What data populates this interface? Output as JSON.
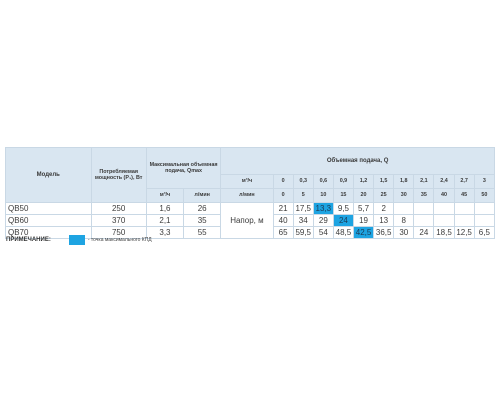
{
  "header": {
    "model": "Модель",
    "power": "Потребляемая мощность (P₁), Вт",
    "max_flow": "Максимальная объемная подача, Qmax",
    "max_flow_unit_m3": "м³/ч",
    "max_flow_unit_lmin": "л/мин",
    "flow": "Объемная подача, Q",
    "row_unit_m3": "м³/ч",
    "row_unit_lmin": "л/мин",
    "flow_m3": [
      "0",
      "0,3",
      "0,6",
      "0,9",
      "1,2",
      "1,5",
      "1,8",
      "2,1",
      "2,4",
      "2,7",
      "3"
    ],
    "flow_lmin": [
      "0",
      "5",
      "10",
      "15",
      "20",
      "25",
      "30",
      "35",
      "40",
      "45",
      "50"
    ]
  },
  "head_label": "Напор, м",
  "rows": [
    {
      "model": "QB50",
      "power": "250",
      "qmax_m3": "1,6",
      "qmax_lmin": "26",
      "head": [
        "21",
        "17,5",
        "13,3",
        "9,5",
        "5,7",
        "2",
        "",
        "",
        "",
        "",
        ""
      ],
      "highlight": 2
    },
    {
      "model": "QB60",
      "power": "370",
      "qmax_m3": "2,1",
      "qmax_lmin": "35",
      "head": [
        "40",
        "34",
        "29",
        "24",
        "19",
        "13",
        "8",
        "",
        "",
        "",
        ""
      ],
      "highlight": 3
    },
    {
      "model": "QB70",
      "power": "750",
      "qmax_m3": "3,3",
      "qmax_lmin": "55",
      "head": [
        "65",
        "59,5",
        "54",
        "48,5",
        "42,5",
        "36,5",
        "30",
        "24",
        "18,5",
        "12,5",
        "6,5"
      ],
      "highlight": 4
    }
  ],
  "note": {
    "label": "ПРИМЕЧАНИЕ:",
    "text": "- точка максимального КПД",
    "highlight_color": "#1ea4e2"
  }
}
